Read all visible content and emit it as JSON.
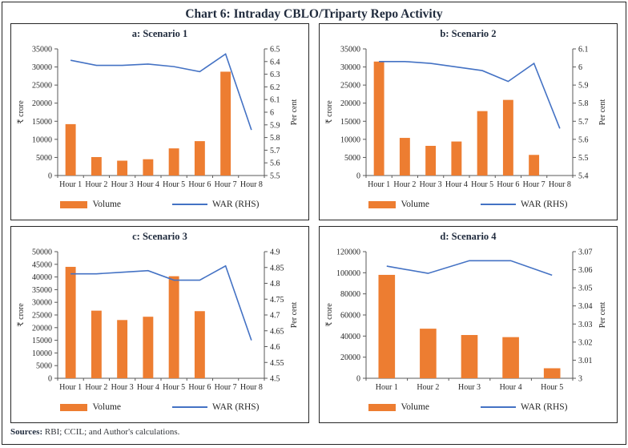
{
  "title": "Chart 6: Intraday CBLO/Triparty Repo Activity",
  "legend": {
    "volume": "Volume",
    "war": "WAR (RHS)"
  },
  "footer": {
    "sources_label": "Sources:",
    "sources_text": " RBI; CCIL; and Author's calculations."
  },
  "colors": {
    "bar": "#ED7D31",
    "line": "#4472C4",
    "axis": "#595959",
    "tick_text": "#262626",
    "title_text": "#1f2a3c"
  },
  "chart_data": [
    {
      "type": "bar",
      "panel": "a",
      "title": "a: Scenario 1",
      "categories": [
        "Hour 1",
        "Hour 2",
        "Hour 3",
        "Hour 4",
        "Hour 5",
        "Hour 6",
        "Hour 7",
        "Hour 8"
      ],
      "series": [
        {
          "name": "Volume",
          "type": "bar",
          "axis": "left",
          "values": [
            14200,
            5100,
            4100,
            4500,
            7500,
            9500,
            28700,
            0
          ]
        },
        {
          "name": "WAR (RHS)",
          "type": "line",
          "axis": "right",
          "values": [
            6.41,
            6.37,
            6.37,
            6.38,
            6.36,
            6.32,
            6.46,
            5.86
          ]
        }
      ],
      "left_axis": {
        "label": "₹ crore",
        "min": 0,
        "max": 35000,
        "step": 5000,
        "ticks": [
          "0",
          "5000",
          "10000",
          "15000",
          "20000",
          "25000",
          "30000",
          "35000"
        ]
      },
      "right_axis": {
        "label": "Per cent",
        "min": 5.5,
        "max": 6.5,
        "step": 0.1,
        "ticks": [
          "5.5",
          "5.6",
          "5.7",
          "5.8",
          "5.9",
          "6",
          "6.1",
          "6.2",
          "6.3",
          "6.4",
          "6.5"
        ]
      },
      "grid": false,
      "legend_position": "bottom"
    },
    {
      "type": "bar",
      "panel": "b",
      "title": "b: Scenario 2",
      "categories": [
        "Hour 1",
        "Hour 2",
        "Hour 3",
        "Hour 4",
        "Hour 5",
        "Hour 6",
        "Hour 7",
        "Hour 8"
      ],
      "series": [
        {
          "name": "Volume",
          "type": "bar",
          "axis": "left",
          "values": [
            31500,
            10400,
            8200,
            9400,
            17800,
            20900,
            5700,
            0
          ]
        },
        {
          "name": "WAR (RHS)",
          "type": "line",
          "axis": "right",
          "values": [
            6.03,
            6.03,
            6.02,
            6.0,
            5.98,
            5.92,
            6.02,
            5.66
          ]
        }
      ],
      "left_axis": {
        "label": "₹ crore",
        "min": 0,
        "max": 35000,
        "step": 5000,
        "ticks": [
          "0",
          "5000",
          "10000",
          "15000",
          "20000",
          "25000",
          "30000",
          "35000"
        ]
      },
      "right_axis": {
        "label": "Per cent",
        "min": 5.4,
        "max": 6.1,
        "step": 0.1,
        "ticks": [
          "5.4",
          "5.5",
          "5.6",
          "5.7",
          "5.8",
          "5.9",
          "6",
          "6.1"
        ]
      },
      "grid": false,
      "legend_position": "bottom"
    },
    {
      "type": "bar",
      "panel": "c",
      "title": "c: Scenario 3",
      "categories": [
        "Hour 1",
        "Hour 2",
        "Hour 3",
        "Hour 4",
        "Hour 5",
        "Hour 6",
        "Hour 7",
        "Hour 8"
      ],
      "series": [
        {
          "name": "Volume",
          "type": "bar",
          "axis": "left",
          "values": [
            44000,
            26700,
            23000,
            24300,
            40300,
            26500,
            0,
            0
          ]
        },
        {
          "name": "WAR (RHS)",
          "type": "line",
          "axis": "right",
          "values": [
            4.83,
            4.83,
            4.835,
            4.84,
            4.81,
            4.81,
            4.855,
            4.62
          ]
        }
      ],
      "left_axis": {
        "label": "₹ crore",
        "min": 0,
        "max": 50000,
        "step": 5000,
        "ticks": [
          "0",
          "5000",
          "10000",
          "15000",
          "20000",
          "25000",
          "30000",
          "35000",
          "40000",
          "45000",
          "50000"
        ]
      },
      "right_axis": {
        "label": "Per cent",
        "min": 4.5,
        "max": 4.9,
        "step": 0.05,
        "ticks": [
          "4.5",
          "4.55",
          "4.6",
          "4.65",
          "4.7",
          "4.75",
          "4.8",
          "4.85",
          "4.9"
        ]
      },
      "grid": false,
      "legend_position": "bottom"
    },
    {
      "type": "bar",
      "panel": "d",
      "title": "d: Scenario 4",
      "categories": [
        "Hour 1",
        "Hour 2",
        "Hour 3",
        "Hour 4",
        "Hour 5"
      ],
      "series": [
        {
          "name": "Volume",
          "type": "bar",
          "axis": "left",
          "values": [
            98000,
            47000,
            41000,
            39000,
            9500
          ]
        },
        {
          "name": "WAR (RHS)",
          "type": "line",
          "axis": "right",
          "values": [
            3.062,
            3.058,
            3.065,
            3.065,
            3.057
          ]
        }
      ],
      "left_axis": {
        "label": "₹ crore",
        "min": 0,
        "max": 120000,
        "step": 20000,
        "ticks": [
          "0",
          "20000",
          "40000",
          "60000",
          "80000",
          "100000",
          "120000"
        ]
      },
      "right_axis": {
        "label": "Per cent",
        "min": 3.0,
        "max": 3.07,
        "step": 0.01,
        "ticks": [
          "3",
          "3.01",
          "3.02",
          "3.03",
          "3.04",
          "3.05",
          "3.06",
          "3.07"
        ]
      },
      "grid": false,
      "legend_position": "bottom"
    }
  ]
}
